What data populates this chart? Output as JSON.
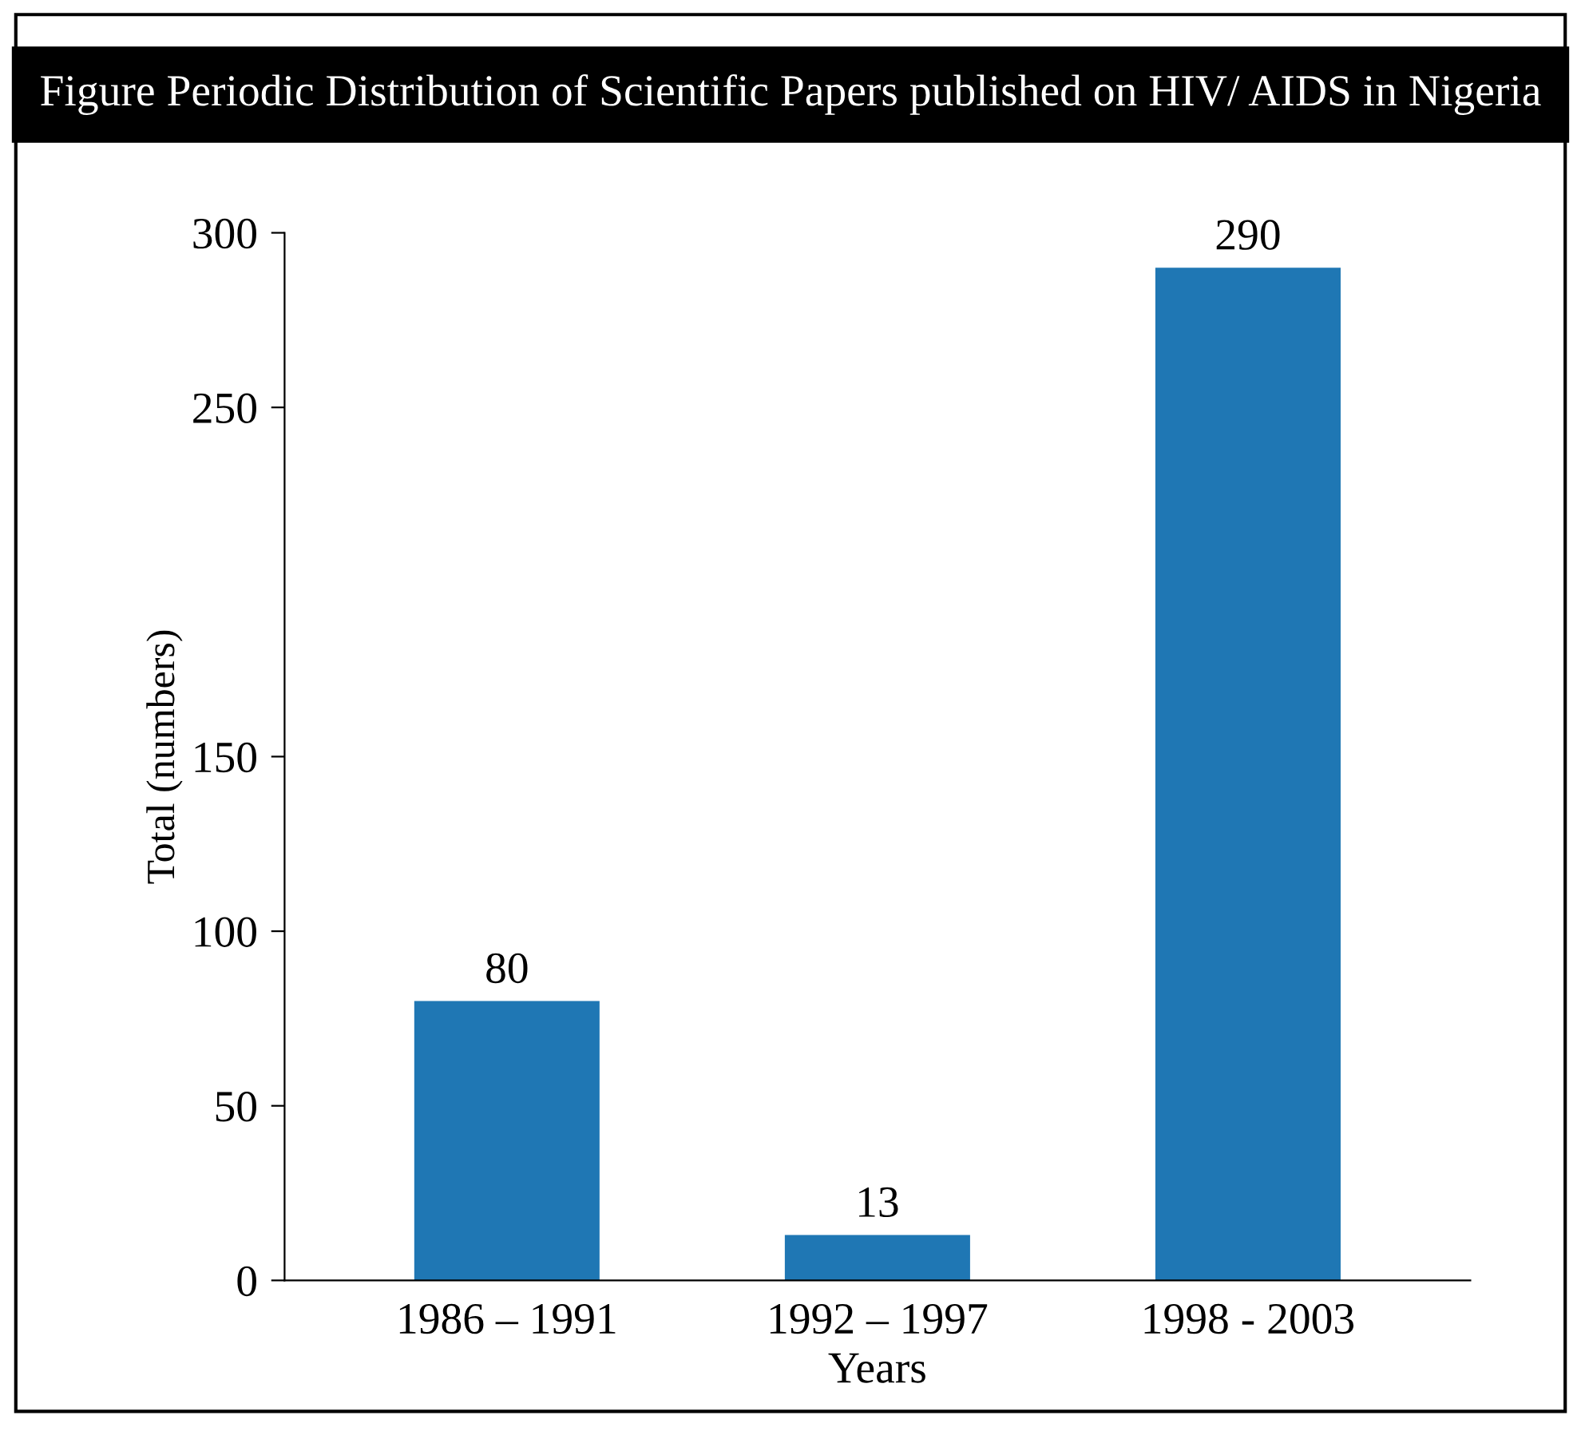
{
  "chart_data": {
    "type": "bar",
    "title": "Figure Periodic Distribution of Scientific Papers published on HIV/ AIDS in Nigeria",
    "categories": [
      "1986 – 1991",
      "1992 – 1997",
      "1998 - 2003"
    ],
    "values": [
      80,
      13,
      290
    ],
    "xlabel": "Years",
    "ylabel": "Total (numbers)",
    "ylim": [
      0,
      300
    ],
    "yticks": [
      0,
      50,
      100,
      150,
      250,
      300
    ],
    "data_labels": true,
    "grid": false,
    "legend": false
  }
}
